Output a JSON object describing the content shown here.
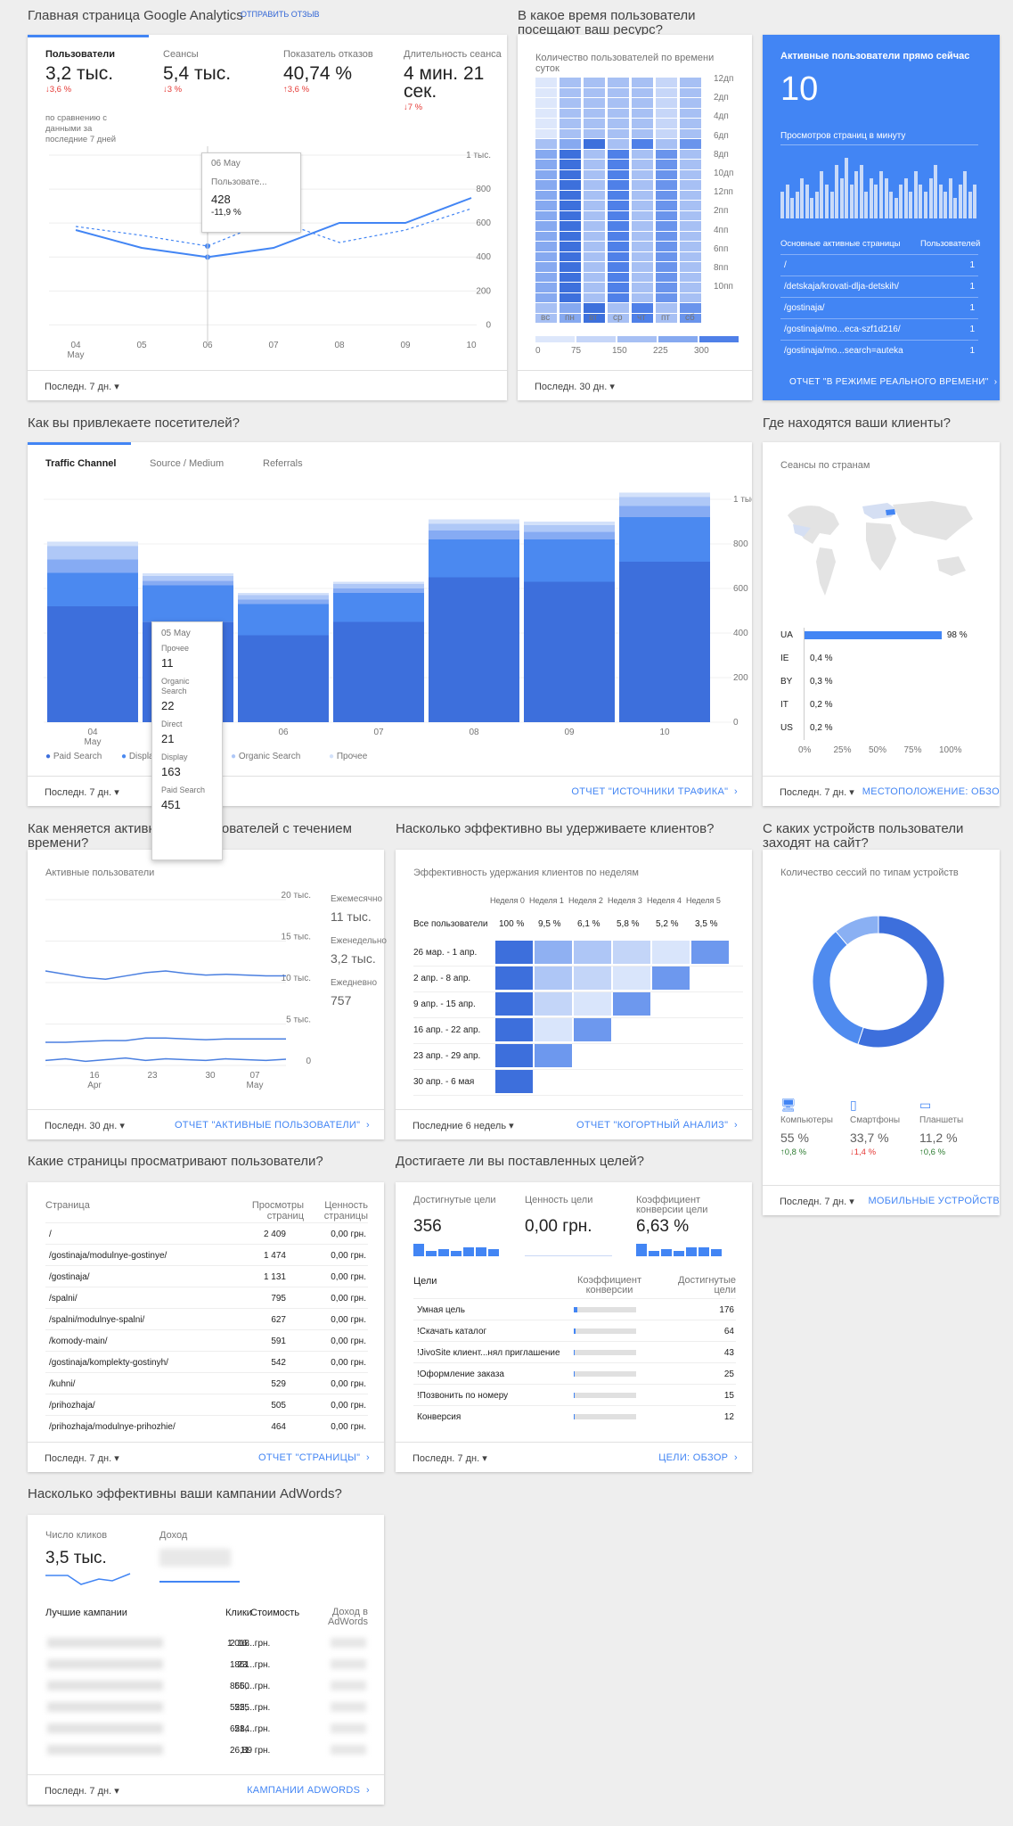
{
  "overview": {
    "title": "Главная страница Google Analytics",
    "feedback": "ОТПРАВИТЬ ОТЗЫВ",
    "metrics": [
      {
        "label": "Пользователи",
        "value": "3,2 тыс.",
        "delta": "↓3,6 %",
        "trend": "down"
      },
      {
        "label": "Сеансы",
        "value": "5,4 тыс.",
        "delta": "↓3 %",
        "trend": "down"
      },
      {
        "label": "Показатель отказов",
        "value": "40,74 %",
        "delta": "↑3,6 %",
        "trend": "up"
      },
      {
        "label": "Длительность сеанса",
        "value": "4 мин. 21 сек.",
        "delta": "↓7 %",
        "trend": "down"
      }
    ],
    "compare_note": "по сравнению с данными за последние 7 дней",
    "tooltip": {
      "date": "06 May",
      "series": "Пользовате...",
      "value": "428",
      "delta": "-11,9 %"
    },
    "chart_data": {
      "type": "line",
      "x": [
        "04 May",
        "05",
        "06",
        "07",
        "08",
        "09",
        "10"
      ],
      "series": [
        {
          "values": [
            580,
            480,
            428,
            480,
            620,
            620,
            760
          ]
        },
        {
          "values": [
            600,
            550,
            490,
            640,
            510,
            580,
            700
          ]
        }
      ],
      "ylim": [
        0,
        1000
      ],
      "yticks": [
        "1 тыс.",
        "800",
        "600",
        "400",
        "200",
        "0"
      ]
    },
    "period": "Последн. 7 дн."
  },
  "heatmap": {
    "title": "В какое время пользователи посещают ваш ресурс?",
    "subtitle": "Количество пользователей по времени суток",
    "hours": [
      "12дп",
      "2дп",
      "4дп",
      "6дп",
      "8дп",
      "10дп",
      "12пп",
      "2пп",
      "4пп",
      "6пп",
      "8пп",
      "10пп"
    ],
    "days": [
      "вс",
      "пн",
      "вт",
      "ср",
      "чт",
      "пт",
      "сб"
    ],
    "legend": [
      "0",
      "75",
      "150",
      "225",
      "300"
    ],
    "period": "Последн. 30 дн."
  },
  "realtime": {
    "title": "Активные пользователи прямо сейчас",
    "value": "10",
    "views_label": "Просмотров страниц в минуту",
    "bars": [
      4,
      5,
      3,
      4,
      6,
      5,
      3,
      4,
      7,
      5,
      4,
      8,
      6,
      9,
      5,
      7,
      8,
      4,
      6,
      5,
      7,
      6,
      4,
      3,
      5,
      6,
      4,
      7,
      5,
      4,
      6,
      8,
      5,
      4,
      6,
      3,
      5,
      7,
      4,
      5
    ],
    "col_pages": "Основные активные страницы",
    "col_users": "Пользователей",
    "rows": [
      {
        "page": "/",
        "users": "1"
      },
      {
        "page": "/detskaja/krovati-dlja-detskih/",
        "users": "1"
      },
      {
        "page": "/gostinaja/",
        "users": "1"
      },
      {
        "page": "/gostinaja/mo...eca-szf1d216/",
        "users": "1"
      },
      {
        "page": "/gostinaja/mo...search=auteka",
        "users": "1"
      }
    ],
    "link": "ОТЧЕТ \"В РЕЖИМЕ РЕАЛЬНОГО ВРЕМЕНИ\""
  },
  "acquisition": {
    "title": "Как вы привлекаете посетителей?",
    "tabs": [
      "Traffic Channel",
      "Source / Medium",
      "Referrals"
    ],
    "yticks": [
      "1 тыс.",
      "800",
      "600",
      "400",
      "200",
      "0"
    ],
    "chart_data": {
      "type": "bar",
      "stacked": true,
      "categories": [
        "04 May",
        "05",
        "06",
        "07",
        "08",
        "09",
        "10"
      ],
      "series": [
        {
          "name": "Paid Search",
          "values": [
            520,
            451,
            390,
            450,
            650,
            630,
            720
          ]
        },
        {
          "name": "Display",
          "values": [
            150,
            163,
            140,
            130,
            170,
            190,
            200
          ]
        },
        {
          "name": "Direct",
          "values": [
            60,
            21,
            20,
            20,
            40,
            35,
            50
          ]
        },
        {
          "name": "Organic Search",
          "values": [
            60,
            22,
            20,
            20,
            30,
            30,
            40
          ]
        },
        {
          "name": "Прочее",
          "values": [
            20,
            11,
            10,
            10,
            20,
            15,
            20
          ]
        }
      ],
      "ylim": [
        0,
        1000
      ]
    },
    "tooltip": {
      "date": "05 May",
      "items": [
        {
          "label": "Прочее",
          "value": "11"
        },
        {
          "label": "Organic Search",
          "value": "22"
        },
        {
          "label": "Direct",
          "value": "21"
        },
        {
          "label": "Display",
          "value": "163"
        },
        {
          "label": "Paid Search",
          "value": "451"
        }
      ]
    },
    "period": "Последн. 7 дн.",
    "link": "ОТЧЕТ \"ИСТОЧНИКИ ТРАФИКА\""
  },
  "geo": {
    "title": "Где находятся ваши клиенты?",
    "subtitle": "Сеансы по странам",
    "chart_data": {
      "type": "bar",
      "categories": [
        "UA",
        "IE",
        "BY",
        "IT",
        "US"
      ],
      "values": [
        98,
        0.4,
        0.3,
        0.2,
        0.2
      ],
      "labels": [
        "98 %",
        "0,4 %",
        "0,3 %",
        "0,2 %",
        "0,2 %"
      ],
      "xticks": [
        "0%",
        "25%",
        "50%",
        "75%",
        "100%"
      ]
    },
    "period": "Последн. 7 дн.",
    "link": "МЕСТОПОЛОЖЕНИЕ: ОБЗО"
  },
  "active_users": {
    "title": "Как меняется активность пользователей с течением времени?",
    "subtitle": "Активные пользователи",
    "yticks": [
      "20 тыс.",
      "15 тыс.",
      "10 тыс.",
      "5 тыс.",
      "0"
    ],
    "xticks": [
      "16 Apr",
      "23",
      "30",
      "07 May"
    ],
    "chart_data": {
      "type": "line",
      "series": [
        {
          "name": "Ежемесячно",
          "values": [
            11.4,
            11,
            10.6,
            10.4,
            10.8,
            11.2,
            11.4,
            11.1,
            10.9,
            11,
            10.9,
            10.8,
            10.8
          ]
        },
        {
          "name": "Еженедельно",
          "values": [
            2.8,
            2.8,
            2.9,
            3,
            3,
            3.3,
            3.3,
            3.2,
            3.1,
            3.2,
            3.2,
            3.2,
            3.2
          ]
        },
        {
          "name": "Ежедневно",
          "values": [
            0.6,
            0.8,
            0.5,
            0.7,
            0.9,
            0.6,
            0.8,
            0.7,
            0.6,
            0.8,
            0.7,
            0.6,
            0.75
          ]
        }
      ],
      "ylim": [
        0,
        20
      ]
    },
    "legend": [
      {
        "label": "Ежемесячно",
        "value": "11 тыс."
      },
      {
        "label": "Еженедельно",
        "value": "3,2 тыс."
      },
      {
        "label": "Ежедневно",
        "value": "757"
      }
    ],
    "period": "Последн. 30 дн.",
    "link": "ОТЧЕТ \"АКТИВНЫЕ ПОЛЬЗОВАТЕЛИ\""
  },
  "retention": {
    "title": "Насколько эффективно вы удерживаете клиентов?",
    "subtitle": "Эффективность удержания клиентов по неделям",
    "weeks": [
      "Неделя 0",
      "Неделя 1",
      "Неделя 2",
      "Неделя 3",
      "Неделя 4",
      "Неделя 5"
    ],
    "all_label": "Все пользователи",
    "all_values": [
      "100 %",
      "9,5 %",
      "6,1 %",
      "5,8 %",
      "5,2 %",
      "3,5 %"
    ],
    "rows": [
      {
        "label": "26 мар. - 1 апр.",
        "cells": 6
      },
      {
        "label": "2 апр. - 8 апр.",
        "cells": 5
      },
      {
        "label": "9 апр. - 15 апр.",
        "cells": 4
      },
      {
        "label": "16 апр. - 22 апр.",
        "cells": 3
      },
      {
        "label": "23 апр. - 29 апр.",
        "cells": 2
      },
      {
        "label": "30 апр. - 6 мая",
        "cells": 1
      }
    ],
    "period": "Последние 6 недель",
    "link": "ОТЧЕТ \"КОГОРТНЫЙ АНАЛИЗ\""
  },
  "devices": {
    "title": "С каких устройств пользователи заходят на сайт?",
    "subtitle": "Количество сессий по типам устройств",
    "chart_data": {
      "type": "pie",
      "categories": [
        "Компьютеры",
        "Смартфоны",
        "Планшеты"
      ],
      "values": [
        55,
        33.7,
        11.2
      ]
    },
    "items": [
      {
        "label": "Компьютеры",
        "value": "55 %",
        "delta": "↑0,8 %",
        "trend": "up",
        "icon": "desktop-icon"
      },
      {
        "label": "Смартфоны",
        "value": "33,7 %",
        "delta": "↓1,4 %",
        "trend": "down",
        "icon": "smartphone-icon"
      },
      {
        "label": "Планшеты",
        "value": "11,2 %",
        "delta": "↑0,6 %",
        "trend": "up",
        "icon": "tablet-icon"
      }
    ],
    "period": "Последн. 7 дн.",
    "link": "МОБИЛЬНЫЕ УСТРОЙСТВ"
  },
  "pages": {
    "title": "Какие страницы просматривают пользователи?",
    "col_page": "Страница",
    "col_views": "Просмотры страниц",
    "col_value": "Ценность страницы",
    "rows": [
      {
        "page": "/",
        "views": "2 409",
        "value": "0,00 грн."
      },
      {
        "page": "/gostinaja/modulnye-gostinye/",
        "views": "1 474",
        "value": "0,00 грн."
      },
      {
        "page": "/gostinaja/",
        "views": "1 131",
        "value": "0,00 грн."
      },
      {
        "page": "/spalni/",
        "views": "795",
        "value": "0,00 грн."
      },
      {
        "page": "/spalni/modulnye-spalni/",
        "views": "627",
        "value": "0,00 грн."
      },
      {
        "page": "/komody-main/",
        "views": "591",
        "value": "0,00 грн."
      },
      {
        "page": "/gostinaja/komplekty-gostinyh/",
        "views": "542",
        "value": "0,00 грн."
      },
      {
        "page": "/kuhni/",
        "views": "529",
        "value": "0,00 грн."
      },
      {
        "page": "/prihozhaja/",
        "views": "505",
        "value": "0,00 грн."
      },
      {
        "page": "/prihozhaja/modulnye-prihozhie/",
        "views": "464",
        "value": "0,00 грн."
      }
    ],
    "period": "Последн. 7 дн.",
    "link": "ОТЧЕТ \"СТРАНИЦЫ\""
  },
  "goals": {
    "title": "Достигаете ли вы поставленных целей?",
    "metrics": [
      {
        "label": "Достигнутые цели",
        "value": "356"
      },
      {
        "label": "Ценность цели",
        "value": "0,00 грн."
      },
      {
        "label": "Коэффициент конверсии цели",
        "value": "6,63 %"
      }
    ],
    "col_goal": "Цели",
    "col_rate": "Коэффициент конверсии",
    "col_done": "Достигнутые цели",
    "rows": [
      {
        "goal": "Умная цель",
        "value": "176",
        "rate": 4
      },
      {
        "goal": "!Скачать каталог",
        "value": "64",
        "rate": 2
      },
      {
        "goal": "!JivoSite клиент...нял приглашение",
        "value": "43",
        "rate": 1
      },
      {
        "goal": "!Оформление заказа",
        "value": "25",
        "rate": 1
      },
      {
        "goal": "!Позвонить по номеру",
        "value": "15",
        "rate": 1
      },
      {
        "goal": "Конверсия",
        "value": "12",
        "rate": 1
      }
    ],
    "period": "Последн. 7 дн.",
    "link": "ЦЕЛИ: ОБЗОР"
  },
  "adwords": {
    "title": "Насколько эффективны ваши кампании AdWords?",
    "clicks_label": "Число кликов",
    "clicks_value": "3,5 тыс.",
    "revenue_label": "Доход",
    "col_campaign": "Лучшие кампании",
    "col_clicks": "Клики",
    "col_cost": "Стоимость",
    "col_revenue": "Доход в AdWords",
    "rows": [
      {
        "clicks": "1 018",
        "cost": "2 16...грн."
      },
      {
        "clicks": "861",
        "cost": "1 23...грн."
      },
      {
        "clicks": "550",
        "cost": "866,...грн."
      },
      {
        "clicks": "525",
        "cost": "525,...грн."
      },
      {
        "clicks": "514",
        "cost": "628,...грн."
      },
      {
        "clicks": "11",
        "cost": "26,89 грн."
      }
    ],
    "period": "Последн. 7 дн.",
    "link": "КАМПАНИИ ADWORDS"
  },
  "colors": {
    "accent": "#4285f4",
    "dark_blue": "#3367d6",
    "red": "#e53935",
    "green": "#2e7d32"
  }
}
